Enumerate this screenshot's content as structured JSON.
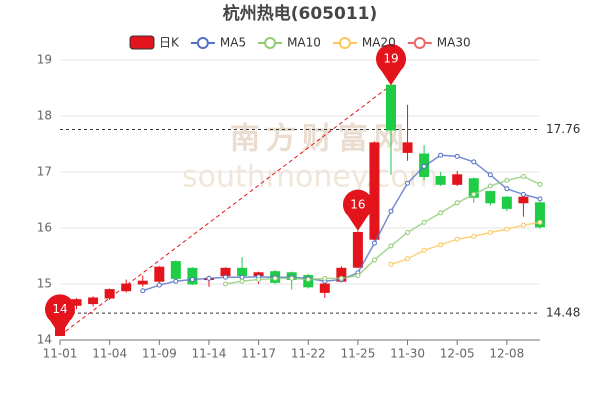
{
  "chart_data": {
    "type": "candlestick",
    "title": "杭州热电(605011)",
    "watermark": [
      "南方财富网",
      "southmoney.com"
    ],
    "categories": [
      "11-01",
      null,
      null,
      "11-04",
      null,
      null,
      "11-09",
      null,
      null,
      "11-14",
      null,
      null,
      "11-17",
      null,
      null,
      "11-22",
      null,
      null,
      "11-25",
      null,
      null,
      "11-30",
      null,
      null,
      "12-05",
      null,
      null,
      "12-08",
      null,
      null
    ],
    "candles": {
      "name": "日K",
      "up_color": "#e3141b",
      "down_color": "#1fcc45",
      "open": [
        14.08,
        14.62,
        14.65,
        14.75,
        14.88,
        15.0,
        15.05,
        15.4,
        15.28,
        15.08,
        15.15,
        15.28,
        15.15,
        15.22,
        15.2,
        15.15,
        14.85,
        15.05,
        15.3,
        15.8,
        18.55,
        17.35,
        17.32,
        16.92,
        16.78,
        16.88,
        16.65,
        16.55,
        16.45,
        16.45
      ],
      "close": [
        14.62,
        14.72,
        14.75,
        14.9,
        15.0,
        15.05,
        15.3,
        15.1,
        15.0,
        15.1,
        15.28,
        15.15,
        15.2,
        15.03,
        15.08,
        14.95,
        15.0,
        15.28,
        15.92,
        17.52,
        17.75,
        17.52,
        16.92,
        16.78,
        16.95,
        16.55,
        16.45,
        16.35,
        16.55,
        16.02
      ],
      "low": [
        14.08,
        14.55,
        14.6,
        14.72,
        14.85,
        14.95,
        14.98,
        15.05,
        14.98,
        14.95,
        15.1,
        15.1,
        15.0,
        15.0,
        14.9,
        14.92,
        14.75,
        15.03,
        15.28,
        15.78,
        16.95,
        17.2,
        16.85,
        16.75,
        16.75,
        16.45,
        16.4,
        16.3,
        16.2,
        15.98
      ],
      "high": [
        14.62,
        14.75,
        14.78,
        14.92,
        15.08,
        15.15,
        15.32,
        15.42,
        15.3,
        15.15,
        15.3,
        15.48,
        15.22,
        15.25,
        15.22,
        15.18,
        15.02,
        15.32,
        15.95,
        17.55,
        18.55,
        18.2,
        17.48,
        17.0,
        17.02,
        16.9,
        16.67,
        16.57,
        16.57,
        16.47
      ]
    },
    "series": [
      {
        "name": "MA5",
        "color": "#5470c6",
        "values": [
          null,
          null,
          null,
          null,
          null,
          14.88,
          14.98,
          15.05,
          15.08,
          15.1,
          15.12,
          15.12,
          15.13,
          15.12,
          15.12,
          15.1,
          15.05,
          15.08,
          15.2,
          15.73,
          16.3,
          16.8,
          17.1,
          17.3,
          17.28,
          17.18,
          16.95,
          16.7,
          16.6,
          16.52
        ]
      },
      {
        "name": "MA10",
        "color": "#91cc75",
        "values": [
          null,
          null,
          null,
          null,
          null,
          null,
          null,
          null,
          null,
          null,
          15.0,
          15.05,
          15.08,
          15.1,
          15.1,
          15.08,
          15.1,
          15.1,
          15.15,
          15.43,
          15.68,
          15.92,
          16.1,
          16.27,
          16.45,
          16.6,
          16.75,
          16.85,
          16.92,
          16.78
        ]
      },
      {
        "name": "MA20",
        "color": "#fac858",
        "values": [
          null,
          null,
          null,
          null,
          null,
          null,
          null,
          null,
          null,
          null,
          null,
          null,
          null,
          null,
          null,
          null,
          null,
          null,
          null,
          null,
          15.35,
          15.45,
          15.6,
          15.7,
          15.8,
          15.85,
          15.92,
          15.98,
          16.05,
          16.1
        ]
      },
      {
        "name": "MA30",
        "color": "#ee6666",
        "values": [
          null,
          null,
          null,
          null,
          null,
          null,
          null,
          null,
          null,
          null,
          null,
          null,
          null,
          null,
          null,
          null,
          null,
          null,
          null,
          null,
          null,
          null,
          null,
          null,
          null,
          null,
          null,
          null,
          null,
          null
        ]
      }
    ],
    "markers": [
      {
        "index": 0,
        "value": 14.08,
        "label": "14"
      },
      {
        "index": 18,
        "value": 15.95,
        "label": "16"
      },
      {
        "index": 20,
        "value": 18.55,
        "label": "19"
      }
    ],
    "hlines": [
      17.76,
      14.48
    ],
    "ylim": [
      14,
      19
    ],
    "yticks": [
      14,
      15,
      16,
      17,
      18,
      19
    ],
    "grid": true
  }
}
